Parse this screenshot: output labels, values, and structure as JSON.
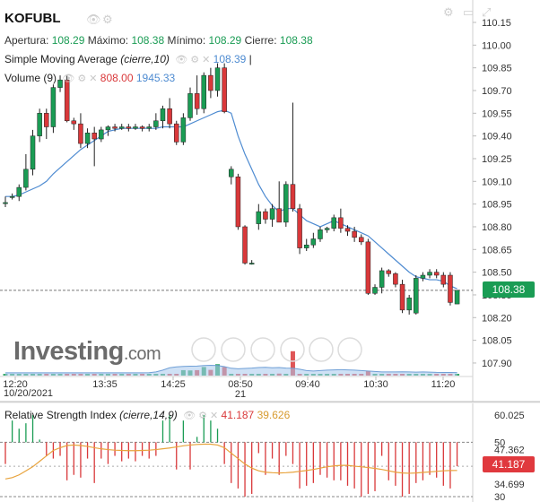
{
  "header": {
    "symbol": "KOFUBL",
    "open_label": "Apertura:",
    "open_value": "108.29",
    "high_label": "Máximo:",
    "high_value": "108.38",
    "low_label": "Mínimo:",
    "low_value": "108.29",
    "close_label": "Cierre:",
    "close_value": "108.38",
    "sma_label": "Simple Moving Average",
    "sma_params": "(cierre,10)",
    "sma_value": "108.39",
    "volume_label": "Volume",
    "volume_params": "(9)",
    "volume_value1": "808.00",
    "volume_value2": "1945.33",
    "rsi_label": "Relative Strength Index",
    "rsi_params": "(cierre,14,9)",
    "rsi_value1": "41.187",
    "rsi_value2": "39.626"
  },
  "colors": {
    "up": "#1a9c54",
    "down": "#d9383a",
    "sma": "#4e8bd1",
    "rsi_signal": "#e8a33c",
    "last_price_tag": "#1a9c54",
    "rsi_tag": "#e0393e"
  },
  "icons": [
    "eye-icon",
    "gear-icon",
    "close-icon",
    "settings-icon",
    "maximize-icon",
    "zoom-in-icon",
    "zoom-out-icon",
    "scroll-left-icon",
    "scroll-right-icon"
  ],
  "logo": {
    "name": "Investing",
    "suffix": ".com"
  },
  "last_price": "108.38",
  "rsi_last": "41.187",
  "chart_data": [
    {
      "type": "candlestick",
      "title": "KOFUBL",
      "y_ticks": [
        "110.15",
        "110.00",
        "109.85",
        "109.70",
        "109.55",
        "109.40",
        "109.25",
        "109.10",
        "108.95",
        "108.80",
        "108.65",
        "108.50",
        "108.35",
        "108.20",
        "108.05",
        "107.90"
      ],
      "ylim": [
        107.8,
        110.23
      ],
      "x_ticks": [
        "12:20",
        "13:35",
        "14:25",
        "08:50",
        "09:40",
        "10:30",
        "11:20"
      ],
      "date_labels": [
        "10/20/2021",
        "21"
      ],
      "reference_line": 108.38,
      "candles": [
        {
          "o": 108.96,
          "h": 109.0,
          "l": 108.93,
          "c": 108.96
        },
        {
          "o": 109.0,
          "h": 109.02,
          "l": 108.98,
          "c": 109.0
        },
        {
          "o": 109.0,
          "h": 109.08,
          "l": 108.97,
          "c": 109.06
        },
        {
          "o": 109.06,
          "h": 109.28,
          "l": 109.04,
          "c": 109.18
        },
        {
          "o": 109.18,
          "h": 109.44,
          "l": 109.14,
          "c": 109.4
        },
        {
          "o": 109.4,
          "h": 109.58,
          "l": 109.36,
          "c": 109.55
        },
        {
          "o": 109.55,
          "h": 109.58,
          "l": 109.38,
          "c": 109.46
        },
        {
          "o": 109.46,
          "h": 109.74,
          "l": 109.42,
          "c": 109.72
        },
        {
          "o": 109.72,
          "h": 109.8,
          "l": 109.69,
          "c": 109.77
        },
        {
          "o": 109.77,
          "h": 109.8,
          "l": 109.49,
          "c": 109.5
        },
        {
          "o": 109.5,
          "h": 109.52,
          "l": 109.44,
          "c": 109.48
        },
        {
          "o": 109.48,
          "h": 109.55,
          "l": 109.32,
          "c": 109.35
        },
        {
          "o": 109.35,
          "h": 109.45,
          "l": 109.32,
          "c": 109.42
        },
        {
          "o": 109.42,
          "h": 109.46,
          "l": 109.2,
          "c": 109.38
        },
        {
          "o": 109.38,
          "h": 109.46,
          "l": 109.36,
          "c": 109.44
        },
        {
          "o": 109.44,
          "h": 109.47,
          "l": 109.4,
          "c": 109.46
        },
        {
          "o": 109.46,
          "h": 109.48,
          "l": 109.43,
          "c": 109.45
        },
        {
          "o": 109.45,
          "h": 109.48,
          "l": 109.44,
          "c": 109.46
        },
        {
          "o": 109.46,
          "h": 109.48,
          "l": 109.43,
          "c": 109.45
        },
        {
          "o": 109.45,
          "h": 109.48,
          "l": 109.44,
          "c": 109.46
        },
        {
          "o": 109.46,
          "h": 109.47,
          "l": 109.43,
          "c": 109.45
        },
        {
          "o": 109.45,
          "h": 109.48,
          "l": 109.43,
          "c": 109.46
        },
        {
          "o": 109.46,
          "h": 109.55,
          "l": 109.44,
          "c": 109.5
        },
        {
          "o": 109.5,
          "h": 109.6,
          "l": 109.45,
          "c": 109.58
        },
        {
          "o": 109.58,
          "h": 109.65,
          "l": 109.45,
          "c": 109.48
        },
        {
          "o": 109.48,
          "h": 109.5,
          "l": 109.34,
          "c": 109.36
        },
        {
          "o": 109.36,
          "h": 109.55,
          "l": 109.34,
          "c": 109.52
        },
        {
          "o": 109.52,
          "h": 109.72,
          "l": 109.5,
          "c": 109.68
        },
        {
          "o": 109.68,
          "h": 109.8,
          "l": 109.54,
          "c": 109.58
        },
        {
          "o": 109.58,
          "h": 109.82,
          "l": 109.55,
          "c": 109.8
        },
        {
          "o": 109.8,
          "h": 109.85,
          "l": 109.65,
          "c": 109.7
        },
        {
          "o": 109.7,
          "h": 109.88,
          "l": 109.66,
          "c": 109.85
        },
        {
          "o": 109.85,
          "h": 109.88,
          "l": 109.55,
          "c": 109.56
        },
        {
          "o": 109.13,
          "h": 109.2,
          "l": 109.08,
          "c": 109.18
        },
        {
          "o": 109.13,
          "h": 109.15,
          "l": 108.78,
          "c": 108.8
        },
        {
          "o": 108.8,
          "h": 108.81,
          "l": 108.55,
          "c": 108.56
        },
        {
          "o": 108.56,
          "h": 108.58,
          "l": 108.55,
          "c": 108.56
        },
        {
          "o": 108.82,
          "h": 108.95,
          "l": 108.78,
          "c": 108.9
        },
        {
          "o": 108.9,
          "h": 108.92,
          "l": 108.82,
          "c": 108.85
        },
        {
          "o": 108.85,
          "h": 108.95,
          "l": 108.8,
          "c": 108.92
        },
        {
          "o": 108.92,
          "h": 109.1,
          "l": 108.85,
          "c": 108.83
        },
        {
          "o": 108.83,
          "h": 109.1,
          "l": 108.8,
          "c": 109.08
        },
        {
          "o": 109.08,
          "h": 109.62,
          "l": 108.9,
          "c": 108.92
        },
        {
          "o": 108.92,
          "h": 108.95,
          "l": 108.62,
          "c": 108.66
        },
        {
          "o": 108.66,
          "h": 108.72,
          "l": 108.64,
          "c": 108.68
        },
        {
          "o": 108.68,
          "h": 108.76,
          "l": 108.66,
          "c": 108.72
        },
        {
          "o": 108.72,
          "h": 108.8,
          "l": 108.7,
          "c": 108.78
        },
        {
          "o": 108.78,
          "h": 108.8,
          "l": 108.76,
          "c": 108.79
        },
        {
          "o": 108.79,
          "h": 108.88,
          "l": 108.77,
          "c": 108.86
        },
        {
          "o": 108.86,
          "h": 108.92,
          "l": 108.76,
          "c": 108.79
        },
        {
          "o": 108.79,
          "h": 108.81,
          "l": 108.74,
          "c": 108.77
        },
        {
          "o": 108.77,
          "h": 108.8,
          "l": 108.7,
          "c": 108.73
        },
        {
          "o": 108.73,
          "h": 108.75,
          "l": 108.68,
          "c": 108.7
        },
        {
          "o": 108.7,
          "h": 108.72,
          "l": 108.35,
          "c": 108.36
        },
        {
          "o": 108.36,
          "h": 108.42,
          "l": 108.35,
          "c": 108.4
        },
        {
          "o": 108.4,
          "h": 108.53,
          "l": 108.36,
          "c": 108.51
        },
        {
          "o": 108.51,
          "h": 108.52,
          "l": 108.47,
          "c": 108.49
        },
        {
          "o": 108.49,
          "h": 108.5,
          "l": 108.4,
          "c": 108.42
        },
        {
          "o": 108.42,
          "h": 108.45,
          "l": 108.23,
          "c": 108.25
        },
        {
          "o": 108.25,
          "h": 108.35,
          "l": 108.22,
          "c": 108.33
        },
        {
          "o": 108.23,
          "h": 108.48,
          "l": 108.22,
          "c": 108.46
        },
        {
          "o": 108.46,
          "h": 108.5,
          "l": 108.44,
          "c": 108.48
        },
        {
          "o": 108.48,
          "h": 108.52,
          "l": 108.46,
          "c": 108.5
        },
        {
          "o": 108.5,
          "h": 108.52,
          "l": 108.46,
          "c": 108.48
        },
        {
          "o": 108.48,
          "h": 108.5,
          "l": 108.4,
          "c": 108.42
        },
        {
          "o": 108.48,
          "h": 108.5,
          "l": 108.28,
          "c": 108.3
        },
        {
          "o": 108.29,
          "h": 108.38,
          "l": 108.29,
          "c": 108.38
        }
      ],
      "sma": [
        109.0,
        109.0,
        109.01,
        109.03,
        109.05,
        109.07,
        109.1,
        109.15,
        109.19,
        109.23,
        109.27,
        109.31,
        109.34,
        109.37,
        109.4,
        109.43,
        109.44,
        109.45,
        109.45,
        109.45,
        109.45,
        109.45,
        109.45,
        109.46,
        109.46,
        109.46,
        109.46,
        109.48,
        109.5,
        109.52,
        109.54,
        109.56,
        109.57,
        109.55,
        109.4,
        109.28,
        109.18,
        109.08,
        109.0,
        108.94,
        108.9,
        108.92,
        108.92,
        108.88,
        108.84,
        108.82,
        108.8,
        108.82,
        108.84,
        108.82,
        108.8,
        108.78,
        108.76,
        108.74,
        108.7,
        108.66,
        108.62,
        108.58,
        108.54,
        108.5,
        108.47,
        108.46,
        108.45,
        108.45,
        108.44,
        108.41,
        108.39
      ],
      "volume": [
        20,
        22,
        18,
        25,
        20,
        22,
        24,
        20,
        25,
        28,
        18,
        22,
        20,
        25,
        22,
        20,
        22,
        21,
        20,
        22,
        20,
        21,
        20,
        22,
        24,
        30,
        95,
        90,
        95,
        150,
        100,
        200,
        150,
        20,
        30,
        25,
        20,
        22,
        25,
        20,
        35,
        30,
        425,
        30,
        22,
        24,
        20,
        22,
        20,
        24,
        20,
        22,
        20,
        85,
        25,
        22,
        20,
        22,
        25,
        20,
        25,
        30,
        22,
        20,
        22,
        24,
        20
      ],
      "volume_ma": [
        30,
        30,
        30,
        30,
        30,
        30,
        30,
        30,
        30,
        30,
        30,
        30,
        30,
        30,
        30,
        30,
        30,
        30,
        30,
        30,
        30,
        32,
        40,
        60,
        85,
        95,
        100,
        102,
        104,
        110,
        112,
        110,
        98,
        80,
        75,
        78,
        82,
        88,
        90,
        85,
        88,
        82,
        80,
        70,
        55,
        50,
        55,
        60,
        62,
        65,
        62,
        60,
        55,
        50,
        45,
        40,
        40,
        40,
        42,
        40,
        38,
        40,
        38,
        35,
        34,
        34,
        33
      ]
    },
    {
      "type": "line",
      "title": "Relative Strength Index",
      "y_ticks": [
        "60.025",
        "50",
        "47.362",
        "34.699",
        "30"
      ],
      "ylim": [
        28,
        62
      ],
      "rsi_signal": [
        36.5,
        37,
        38,
        39.5,
        41,
        43,
        45,
        47,
        48,
        48.8,
        49,
        48.8,
        48.5,
        48,
        47.6,
        47.3,
        47.1,
        47,
        46.9,
        46.9,
        47,
        47.1,
        47.3,
        47.6,
        47.9,
        48.3,
        48.7,
        49,
        49.2,
        49.3,
        49.3,
        49,
        48,
        46,
        44,
        42,
        40.5,
        39.5,
        39,
        38.8,
        38.7,
        38.8,
        39,
        39.3,
        39.6,
        40,
        40.5,
        41,
        41.3,
        41.5,
        41.5,
        41.2,
        41,
        40.7,
        40.4,
        40,
        39.5,
        39,
        38.7,
        38.6,
        38.7,
        38.9,
        39.1,
        39.3,
        39.5,
        39.6,
        39.626
      ],
      "rsi": [
        42,
        58,
        55,
        57,
        60,
        51,
        45,
        44,
        45,
        36,
        38,
        37,
        44,
        35,
        44,
        42,
        45,
        43,
        44,
        43,
        45,
        44,
        45,
        58,
        60,
        40,
        58,
        40,
        52,
        60,
        58,
        55,
        42,
        35,
        33,
        30,
        31,
        46,
        38,
        44,
        38,
        45,
        42,
        33,
        34,
        35,
        38,
        37,
        36,
        36,
        34,
        33,
        30,
        31,
        32,
        45,
        36,
        34,
        30,
        31,
        35,
        36,
        38,
        37,
        34,
        33,
        41.187
      ]
    }
  ]
}
